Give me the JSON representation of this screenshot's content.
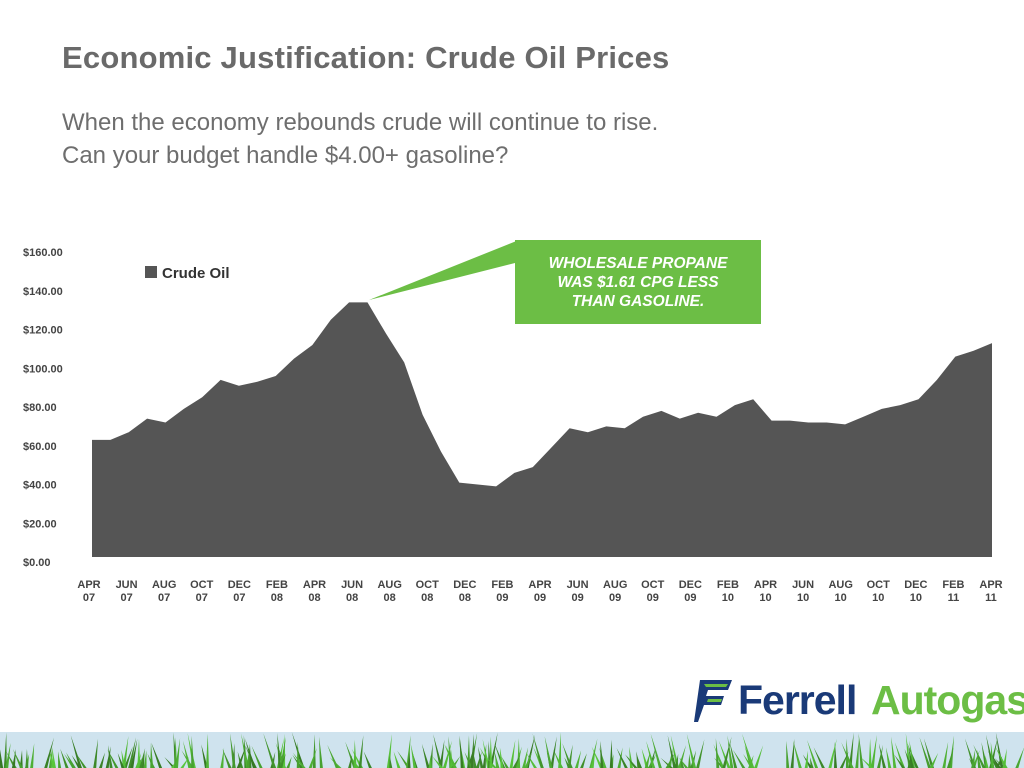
{
  "page": {
    "title": "Economic Justification: Crude Oil Prices",
    "subtitle_lines": [
      "When the economy rebounds crude will continue to rise.",
      "Can your budget handle $4.00+ gasoline?"
    ]
  },
  "callout": {
    "text": "WHOLESALE PROPANE\nWAS $1.61 CPG LESS\nTHAN GASOLINE.",
    "color": "#6cbe45"
  },
  "logo": {
    "word1": "Ferrell",
    "word2": "Autogas",
    "colors": {
      "primary": "#1a3a78",
      "accent": "#6cbe45"
    }
  },
  "chart_data": {
    "type": "area",
    "title": "",
    "xlabel": "",
    "ylabel": "",
    "ylim": [
      0,
      160
    ],
    "yticks": [
      "$0.00",
      "$20.00",
      "$40.00",
      "$60.00",
      "$80.00",
      "$100.00",
      "$120.00",
      "$140.00",
      "$160.00"
    ],
    "grid": false,
    "legend": {
      "position": "top-left",
      "entries": [
        {
          "name": "Crude Oil",
          "color": "#555555"
        }
      ]
    },
    "x_tick_labels": [
      [
        "APR",
        "07"
      ],
      [
        "JUN",
        "07"
      ],
      [
        "AUG",
        "07"
      ],
      [
        "OCT",
        "07"
      ],
      [
        "DEC",
        "07"
      ],
      [
        "FEB",
        "08"
      ],
      [
        "APR",
        "08"
      ],
      [
        "JUN",
        "08"
      ],
      [
        "AUG",
        "08"
      ],
      [
        "OCT",
        "08"
      ],
      [
        "DEC",
        "08"
      ],
      [
        "FEB",
        "09"
      ],
      [
        "APR",
        "09"
      ],
      [
        "JUN",
        "09"
      ],
      [
        "AUG",
        "09"
      ],
      [
        "OCT",
        "09"
      ],
      [
        "DEC",
        "09"
      ],
      [
        "FEB",
        "10"
      ],
      [
        "APR",
        "10"
      ],
      [
        "JUN",
        "10"
      ],
      [
        "AUG",
        "10"
      ],
      [
        "OCT",
        "10"
      ],
      [
        "DEC",
        "10"
      ],
      [
        "FEB",
        "11"
      ],
      [
        "APR",
        "11"
      ]
    ],
    "series": [
      {
        "name": "Crude Oil",
        "color": "#555555",
        "values": [
          63,
          63,
          67,
          74,
          72,
          79,
          85,
          94,
          91,
          93,
          96,
          105,
          112,
          125,
          134,
          134,
          118,
          103,
          76,
          57,
          41,
          40,
          39,
          46,
          49,
          59,
          69,
          67,
          70,
          69,
          75,
          78,
          74,
          77,
          75,
          81,
          84,
          73,
          73,
          72,
          72,
          71,
          75,
          79,
          81,
          84,
          94,
          106,
          109,
          113
        ]
      }
    ]
  }
}
